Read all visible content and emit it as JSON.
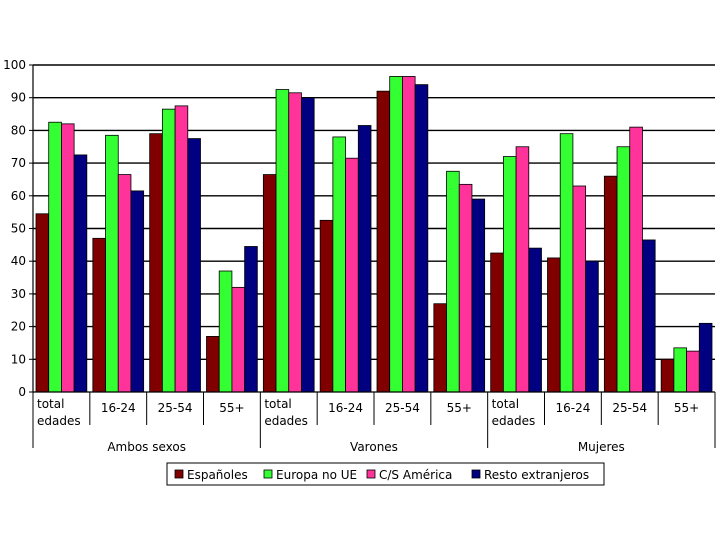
{
  "chart_data": {
    "type": "bar",
    "ylim": [
      0,
      100
    ],
    "yticks": [
      "0",
      "10",
      "20",
      "30",
      "40",
      "50",
      "60",
      "70",
      "80",
      "90",
      "100"
    ],
    "grid": true,
    "legend_position": "bottom",
    "categories": [
      {
        "label": "total edades",
        "lines": [
          "total",
          "edades"
        ]
      },
      {
        "label": "16-24",
        "lines": [
          "16-24"
        ]
      },
      {
        "label": "25-54",
        "lines": [
          "25-54"
        ]
      },
      {
        "label": "55+",
        "lines": [
          "55+"
        ]
      },
      {
        "label": "total edades",
        "lines": [
          "total",
          "edades"
        ]
      },
      {
        "label": "16-24",
        "lines": [
          "16-24"
        ]
      },
      {
        "label": "25-54",
        "lines": [
          "25-54"
        ]
      },
      {
        "label": "55+",
        "lines": [
          "55+"
        ]
      },
      {
        "label": "total edades",
        "lines": [
          "total",
          "edades"
        ]
      },
      {
        "label": "16-24",
        "lines": [
          "16-24"
        ]
      },
      {
        "label": "25-54",
        "lines": [
          "25-54"
        ]
      },
      {
        "label": "55+",
        "lines": [
          "55+"
        ]
      }
    ],
    "groups": [
      {
        "label": "Ambos sexos",
        "categories": 4
      },
      {
        "label": "Varones",
        "categories": 4
      },
      {
        "label": "Mujeres",
        "categories": 4
      }
    ],
    "series": [
      {
        "name": "Españoles",
        "color": "#800000",
        "values": [
          54.5,
          47,
          79,
          17,
          66.5,
          52.5,
          92,
          27,
          42.5,
          41,
          66,
          10
        ]
      },
      {
        "name": "Europa no UE",
        "color": "#33ff33",
        "values": [
          82.5,
          78.5,
          86.5,
          37,
          92.5,
          78,
          96.5,
          67.5,
          72,
          79,
          75,
          13.5
        ]
      },
      {
        "name": "C/S América",
        "color": "#ff3399",
        "values": [
          82,
          66.5,
          87.5,
          32,
          91.5,
          71.5,
          96.5,
          63.5,
          75,
          63,
          81,
          12.5
        ]
      },
      {
        "name": "Resto extranjeros",
        "color": "#000080",
        "values": [
          72.5,
          61.5,
          77.5,
          44.5,
          90,
          81.5,
          94,
          59,
          44,
          40,
          46.5,
          21
        ]
      }
    ]
  }
}
